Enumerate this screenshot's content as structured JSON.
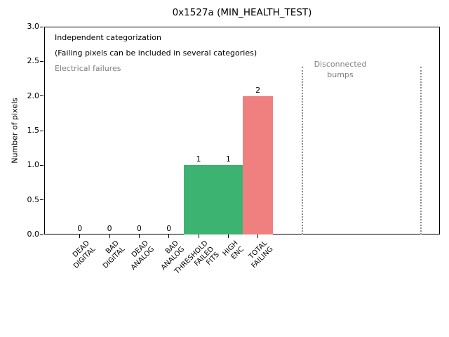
{
  "chart_data": {
    "type": "bar",
    "title": "0x1527a (MIN_HEALTH_TEST)",
    "ylabel": "Number of pixels",
    "xlabel": "",
    "ylim": [
      0,
      3
    ],
    "yticks": [
      0,
      0.5,
      1,
      1.5,
      2,
      2.5,
      3
    ],
    "ytick_labels": [
      "0.0",
      "0.5",
      "1.0",
      "1.5",
      "2.0",
      "2.5",
      "3.0"
    ],
    "categories": [
      "DEAD\nDIGITAL",
      "BAD\nDIGITAL",
      "DEAD\nANALOG",
      "BAD\nANALOG",
      "THRESHOLD\nFAILED\nFITS",
      "HIGH\nENC",
      "TOTAL\nFAILING"
    ],
    "values": [
      0,
      0,
      0,
      0,
      1,
      1,
      2
    ],
    "bar_value_labels": [
      "0",
      "0",
      "0",
      "0",
      "1",
      "1",
      "2"
    ],
    "bar_colors": [
      "#3cb371",
      "#3cb371",
      "#3cb371",
      "#3cb371",
      "#3cb371",
      "#3cb371",
      "#f08080"
    ],
    "bar_width": 1.0,
    "xlim": [
      -1.2,
      12.13
    ],
    "grid": false,
    "legend_position": "none",
    "vlines": {
      "x": [
        7.5,
        11.5
      ],
      "style": "dotted",
      "color": "#8c8c8c",
      "y_top": 2.42,
      "y_bottom": 0
    },
    "annotations": [
      {
        "text": "Independent categorization",
        "color": "#000000"
      },
      {
        "text": "(Failing pixels can be included in several categories)",
        "color": "#000000"
      },
      {
        "text": "Electrical failures",
        "color": "#808080"
      },
      {
        "text": "Disconnected\nbumps",
        "color": "#808080"
      }
    ]
  }
}
